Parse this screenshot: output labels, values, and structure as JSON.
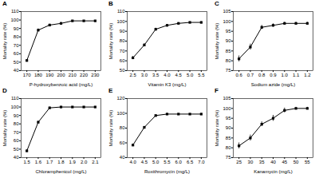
{
  "chart_data": [
    {
      "type": "line",
      "title": "A",
      "xlabel": "P-hydroxybenzoic acid (mg/L)",
      "ylabel": "Mortality rate (%)",
      "x": [
        170,
        180,
        190,
        200,
        210,
        220,
        230
      ],
      "values": [
        52,
        88,
        94,
        96,
        99,
        99,
        99
      ],
      "yerr": [
        1.2,
        1.5,
        1.2,
        1.0,
        0.6,
        0.6,
        0.6
      ],
      "xlim": [
        165,
        235
      ],
      "xticks": [
        170,
        180,
        190,
        200,
        210,
        220,
        230
      ],
      "ylim": [
        40,
        110
      ],
      "yticks": [
        40,
        50,
        60,
        70,
        80,
        90,
        100,
        110
      ],
      "marker": "square"
    },
    {
      "type": "line",
      "title": "B",
      "xlabel": "Vitamin K3 (mg/L)",
      "ylabel": "Mortality rate (%)",
      "x": [
        2.5,
        3.0,
        3.5,
        4.0,
        4.5,
        5.0,
        5.5
      ],
      "values": [
        63,
        76,
        92,
        96,
        98,
        99,
        99
      ],
      "yerr": [
        1.5,
        1.5,
        1.2,
        1.0,
        0.8,
        0.6,
        0.6
      ],
      "xlim": [
        2.25,
        5.75
      ],
      "xticks": [
        2.5,
        {
          "value": 3,
          "label": "3.0"
        },
        3.5,
        {
          "value": 4,
          "label": "4.0"
        },
        4.5,
        {
          "value": 5,
          "label": "5.0"
        },
        5.5
      ],
      "ylim": [
        50,
        110
      ],
      "yticks": [
        50,
        60,
        70,
        80,
        90,
        100,
        110
      ],
      "marker": "square"
    },
    {
      "type": "line",
      "title": "C",
      "xlabel": "Sodium azide (mg/L)",
      "ylabel": "Mortality rate (%)",
      "x": [
        0.6,
        0.7,
        0.8,
        0.9,
        1.0,
        1.1,
        1.2
      ],
      "values": [
        81,
        87,
        97,
        98,
        99,
        99,
        99
      ],
      "yerr": [
        1.5,
        1.5,
        1.0,
        0.8,
        0.6,
        0.6,
        0.6
      ],
      "xlim": [
        0.55,
        1.25
      ],
      "xticks": [
        0.6,
        0.7,
        0.8,
        0.9,
        {
          "value": 1,
          "label": "1.0"
        },
        1.1,
        1.2
      ],
      "ylim": [
        75,
        105
      ],
      "yticks": [
        75,
        80,
        85,
        90,
        95,
        100,
        105
      ],
      "marker": "square"
    },
    {
      "type": "line",
      "title": "D",
      "xlabel": "Chloramphenicol (mg/L)",
      "ylabel": "Mortality rate (%)",
      "x": [
        1.5,
        1.6,
        1.7,
        1.8,
        1.9,
        2.0,
        2.1
      ],
      "values": [
        48,
        82,
        99,
        100,
        100,
        100,
        100
      ],
      "yerr": [
        1.5,
        1.5,
        1.0,
        0.6,
        0.6,
        0.6,
        0.6
      ],
      "xlim": [
        1.45,
        2.15
      ],
      "xticks": [
        1.5,
        1.6,
        1.7,
        1.8,
        1.9,
        {
          "value": 2,
          "label": "2.0"
        },
        2.1
      ],
      "ylim": [
        40,
        110
      ],
      "yticks": [
        40,
        50,
        60,
        70,
        80,
        90,
        100,
        110
      ],
      "marker": "square"
    },
    {
      "type": "line",
      "title": "E",
      "xlabel": "Roxithromycin (mg/L)",
      "ylabel": "Mortality rate (%)",
      "x": [
        4.0,
        4.5,
        5.0,
        5.5,
        6.0,
        6.5,
        7.0
      ],
      "values": [
        57,
        81,
        97,
        99,
        99,
        99,
        99
      ],
      "yerr": [
        1.5,
        1.5,
        1.0,
        0.6,
        0.6,
        0.6,
        0.6
      ],
      "xlim": [
        3.75,
        7.25
      ],
      "xticks": [
        {
          "value": 4,
          "label": "4.0"
        },
        4.5,
        {
          "value": 5,
          "label": "5.0"
        },
        5.5,
        {
          "value": 6,
          "label": "6.0"
        },
        6.5,
        {
          "value": 7,
          "label": "7.0"
        }
      ],
      "ylim": [
        40,
        120
      ],
      "yticks": [
        40,
        60,
        80,
        100,
        120
      ],
      "marker": "square"
    },
    {
      "type": "line",
      "title": "F",
      "xlabel": "Kanamycin (mg/L)",
      "ylabel": "Mortality rate (%)",
      "x": [
        25,
        30,
        35,
        40,
        45,
        50,
        55
      ],
      "values": [
        81,
        85,
        92,
        95,
        99,
        100,
        100
      ],
      "yerr": [
        1.5,
        1.5,
        1.2,
        1.5,
        1.2,
        0.6,
        0.6
      ],
      "xlim": [
        22.5,
        57.5
      ],
      "xticks": [
        25,
        30,
        35,
        40,
        45,
        50,
        55
      ],
      "ylim": [
        75,
        105
      ],
      "yticks": [
        75,
        80,
        85,
        90,
        95,
        100,
        105
      ],
      "marker": "square"
    }
  ]
}
